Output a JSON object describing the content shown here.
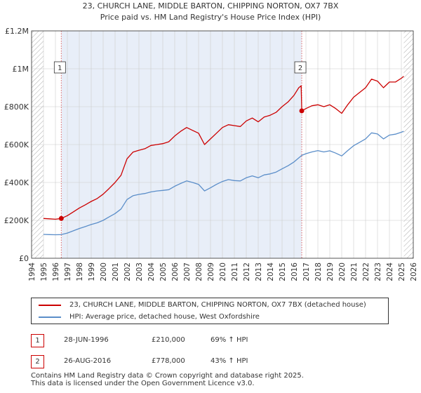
{
  "colors": {
    "price_line": "#cc0000",
    "hpi_line": "#5b8ec9",
    "shade": "#e8eef8",
    "grid": "#cccccc",
    "hatch": "#aaaaaa",
    "vline": "#dd6666"
  },
  "chart_data": {
    "type": "line",
    "title": "23, CHURCH LANE, MIDDLE BARTON, CHIPPING NORTON, OX7 7BX",
    "subtitle": "Price paid vs. HM Land Registry's House Price Index (HPI)",
    "xlabel": "",
    "ylabel": "",
    "xlim": [
      1994,
      2026
    ],
    "ylim": [
      0,
      1200000
    ],
    "x_ticks": [
      1994,
      1995,
      1996,
      1997,
      1998,
      1999,
      2000,
      2001,
      2002,
      2003,
      2004,
      2005,
      2006,
      2007,
      2008,
      2009,
      2010,
      2011,
      2012,
      2013,
      2014,
      2015,
      2016,
      2017,
      2018,
      2019,
      2020,
      2021,
      2022,
      2023,
      2024,
      2025,
      2026
    ],
    "y_ticks": [
      {
        "value": 0,
        "label": "£0"
      },
      {
        "value": 200000,
        "label": "£200K"
      },
      {
        "value": 400000,
        "label": "£400K"
      },
      {
        "value": 600000,
        "label": "£600K"
      },
      {
        "value": 800000,
        "label": "£800K"
      },
      {
        "value": 1000000,
        "label": "£1M"
      },
      {
        "value": 1200000,
        "label": "£1.2M"
      }
    ],
    "data_start": 1995.0,
    "data_end": 2025.2,
    "shaded_range": [
      1996.49,
      2016.65
    ],
    "series": [
      {
        "name": "23, CHURCH LANE, MIDDLE BARTON, CHIPPING NORTON, OX7 7BX (detached house)",
        "x": [
          1995.0,
          1995.5,
          1996.0,
          1996.49,
          1997.0,
          1997.5,
          1998.0,
          1998.5,
          1999.0,
          1999.5,
          2000.0,
          2000.5,
          2001.0,
          2001.5,
          2002.0,
          2002.5,
          2003.0,
          2003.5,
          2004.0,
          2004.5,
          2005.0,
          2005.5,
          2006.0,
          2006.5,
          2007.0,
          2007.5,
          2008.0,
          2008.5,
          2009.0,
          2009.5,
          2010.0,
          2010.5,
          2011.0,
          2011.5,
          2012.0,
          2012.5,
          2013.0,
          2013.5,
          2014.0,
          2014.5,
          2015.0,
          2015.5,
          2016.0,
          2016.4,
          2016.6,
          2016.65,
          2017.0,
          2017.5,
          2018.0,
          2018.5,
          2019.0,
          2019.5,
          2020.0,
          2020.5,
          2021.0,
          2021.5,
          2022.0,
          2022.5,
          2023.0,
          2023.5,
          2024.0,
          2024.5,
          2025.0,
          2025.2
        ],
        "y": [
          210000,
          208000,
          206000,
          210000,
          225000,
          245000,
          265000,
          282000,
          300000,
          315000,
          338000,
          368000,
          400000,
          438000,
          525000,
          560000,
          570000,
          578000,
          595000,
          600000,
          605000,
          615000,
          645000,
          670000,
          690000,
          675000,
          660000,
          600000,
          630000,
          660000,
          690000,
          705000,
          700000,
          695000,
          725000,
          740000,
          720000,
          745000,
          755000,
          770000,
          800000,
          825000,
          860000,
          900000,
          910000,
          778000,
          790000,
          805000,
          810000,
          800000,
          810000,
          790000,
          765000,
          810000,
          850000,
          875000,
          900000,
          945000,
          935000,
          900000,
          930000,
          930000,
          950000,
          960000
        ]
      },
      {
        "name": "HPI: Average price, detached house, West Oxfordshire",
        "x": [
          1995.0,
          1995.5,
          1996.0,
          1996.49,
          1997.0,
          1997.5,
          1998.0,
          1998.5,
          1999.0,
          1999.5,
          2000.0,
          2000.5,
          2001.0,
          2001.5,
          2002.0,
          2002.5,
          2003.0,
          2003.5,
          2004.0,
          2004.5,
          2005.0,
          2005.5,
          2006.0,
          2006.5,
          2007.0,
          2007.5,
          2008.0,
          2008.5,
          2009.0,
          2009.5,
          2010.0,
          2010.5,
          2011.0,
          2011.5,
          2012.0,
          2012.5,
          2013.0,
          2013.5,
          2014.0,
          2014.5,
          2015.0,
          2015.5,
          2016.0,
          2016.65,
          2017.0,
          2017.5,
          2018.0,
          2018.5,
          2019.0,
          2019.5,
          2020.0,
          2020.5,
          2021.0,
          2021.5,
          2022.0,
          2022.5,
          2023.0,
          2023.5,
          2024.0,
          2024.5,
          2025.0,
          2025.2
        ],
        "y": [
          126000,
          125000,
          124000,
          125000,
          133000,
          145000,
          157000,
          167000,
          178000,
          187000,
          200000,
          218000,
          236000,
          260000,
          310000,
          330000,
          337000,
          342000,
          350000,
          355000,
          358000,
          362000,
          380000,
          395000,
          408000,
          400000,
          390000,
          355000,
          372000,
          390000,
          405000,
          415000,
          410000,
          408000,
          425000,
          435000,
          425000,
          440000,
          445000,
          455000,
          472000,
          488000,
          508000,
          543000,
          552000,
          561000,
          568000,
          561000,
          567000,
          555000,
          540000,
          568000,
          594000,
          612000,
          630000,
          662000,
          656000,
          630000,
          650000,
          655000,
          665000,
          670000
        ]
      }
    ],
    "sales": [
      {
        "label": "1",
        "x": 1996.49,
        "y": 210000
      },
      {
        "label": "2",
        "x": 2016.65,
        "y": 778000
      }
    ]
  },
  "legend": {
    "items": [
      {
        "label": "23, CHURCH LANE, MIDDLE BARTON, CHIPPING NORTON, OX7 7BX (detached house)"
      },
      {
        "label": "HPI: Average price, detached house, West Oxfordshire"
      }
    ]
  },
  "transactions": [
    {
      "num": "1",
      "date": "28-JUN-1996",
      "price": "£210,000",
      "hpi": "69% ↑ HPI"
    },
    {
      "num": "2",
      "date": "26-AUG-2016",
      "price": "£778,000",
      "hpi": "43% ↑ HPI"
    }
  ],
  "footer": {
    "line1": "Contains HM Land Registry data © Crown copyright and database right 2025.",
    "line2": "This data is licensed under the Open Government Licence v3.0."
  }
}
